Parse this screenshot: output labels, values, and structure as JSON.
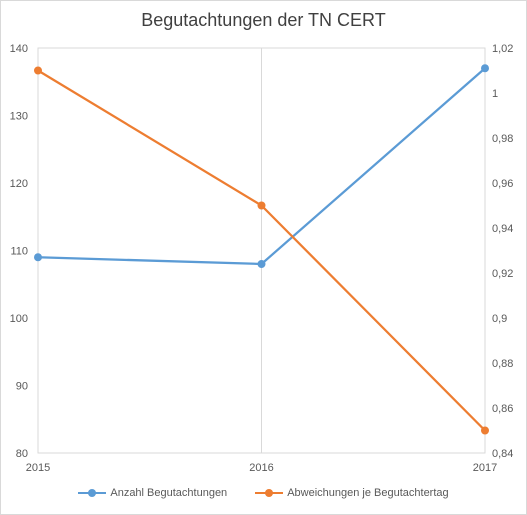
{
  "chart_data": {
    "type": "line",
    "title": "Begutachtungen der TN CERT",
    "x": [
      "2015",
      "2016",
      "2017"
    ],
    "series": [
      {
        "name": "Anzahl Begutachtungen",
        "axis": "left",
        "values": [
          109,
          108,
          137
        ],
        "color": "#5b9bd5"
      },
      {
        "name": "Abweichungen je Begutachtertag",
        "axis": "right",
        "values": [
          1.01,
          0.95,
          0.85
        ],
        "color": "#ed7d31"
      }
    ],
    "y_left": {
      "min": 80,
      "max": 140,
      "ticks": [
        "80",
        "90",
        "100",
        "110",
        "120",
        "130",
        "140"
      ]
    },
    "y_right": {
      "min": 0.84,
      "max": 1.02,
      "ticks": [
        "0,84",
        "0,86",
        "0,88",
        "0,9",
        "0,92",
        "0,94",
        "0,96",
        "0,98",
        "1",
        "1,02"
      ]
    },
    "grid": true,
    "legend_position": "bottom"
  }
}
